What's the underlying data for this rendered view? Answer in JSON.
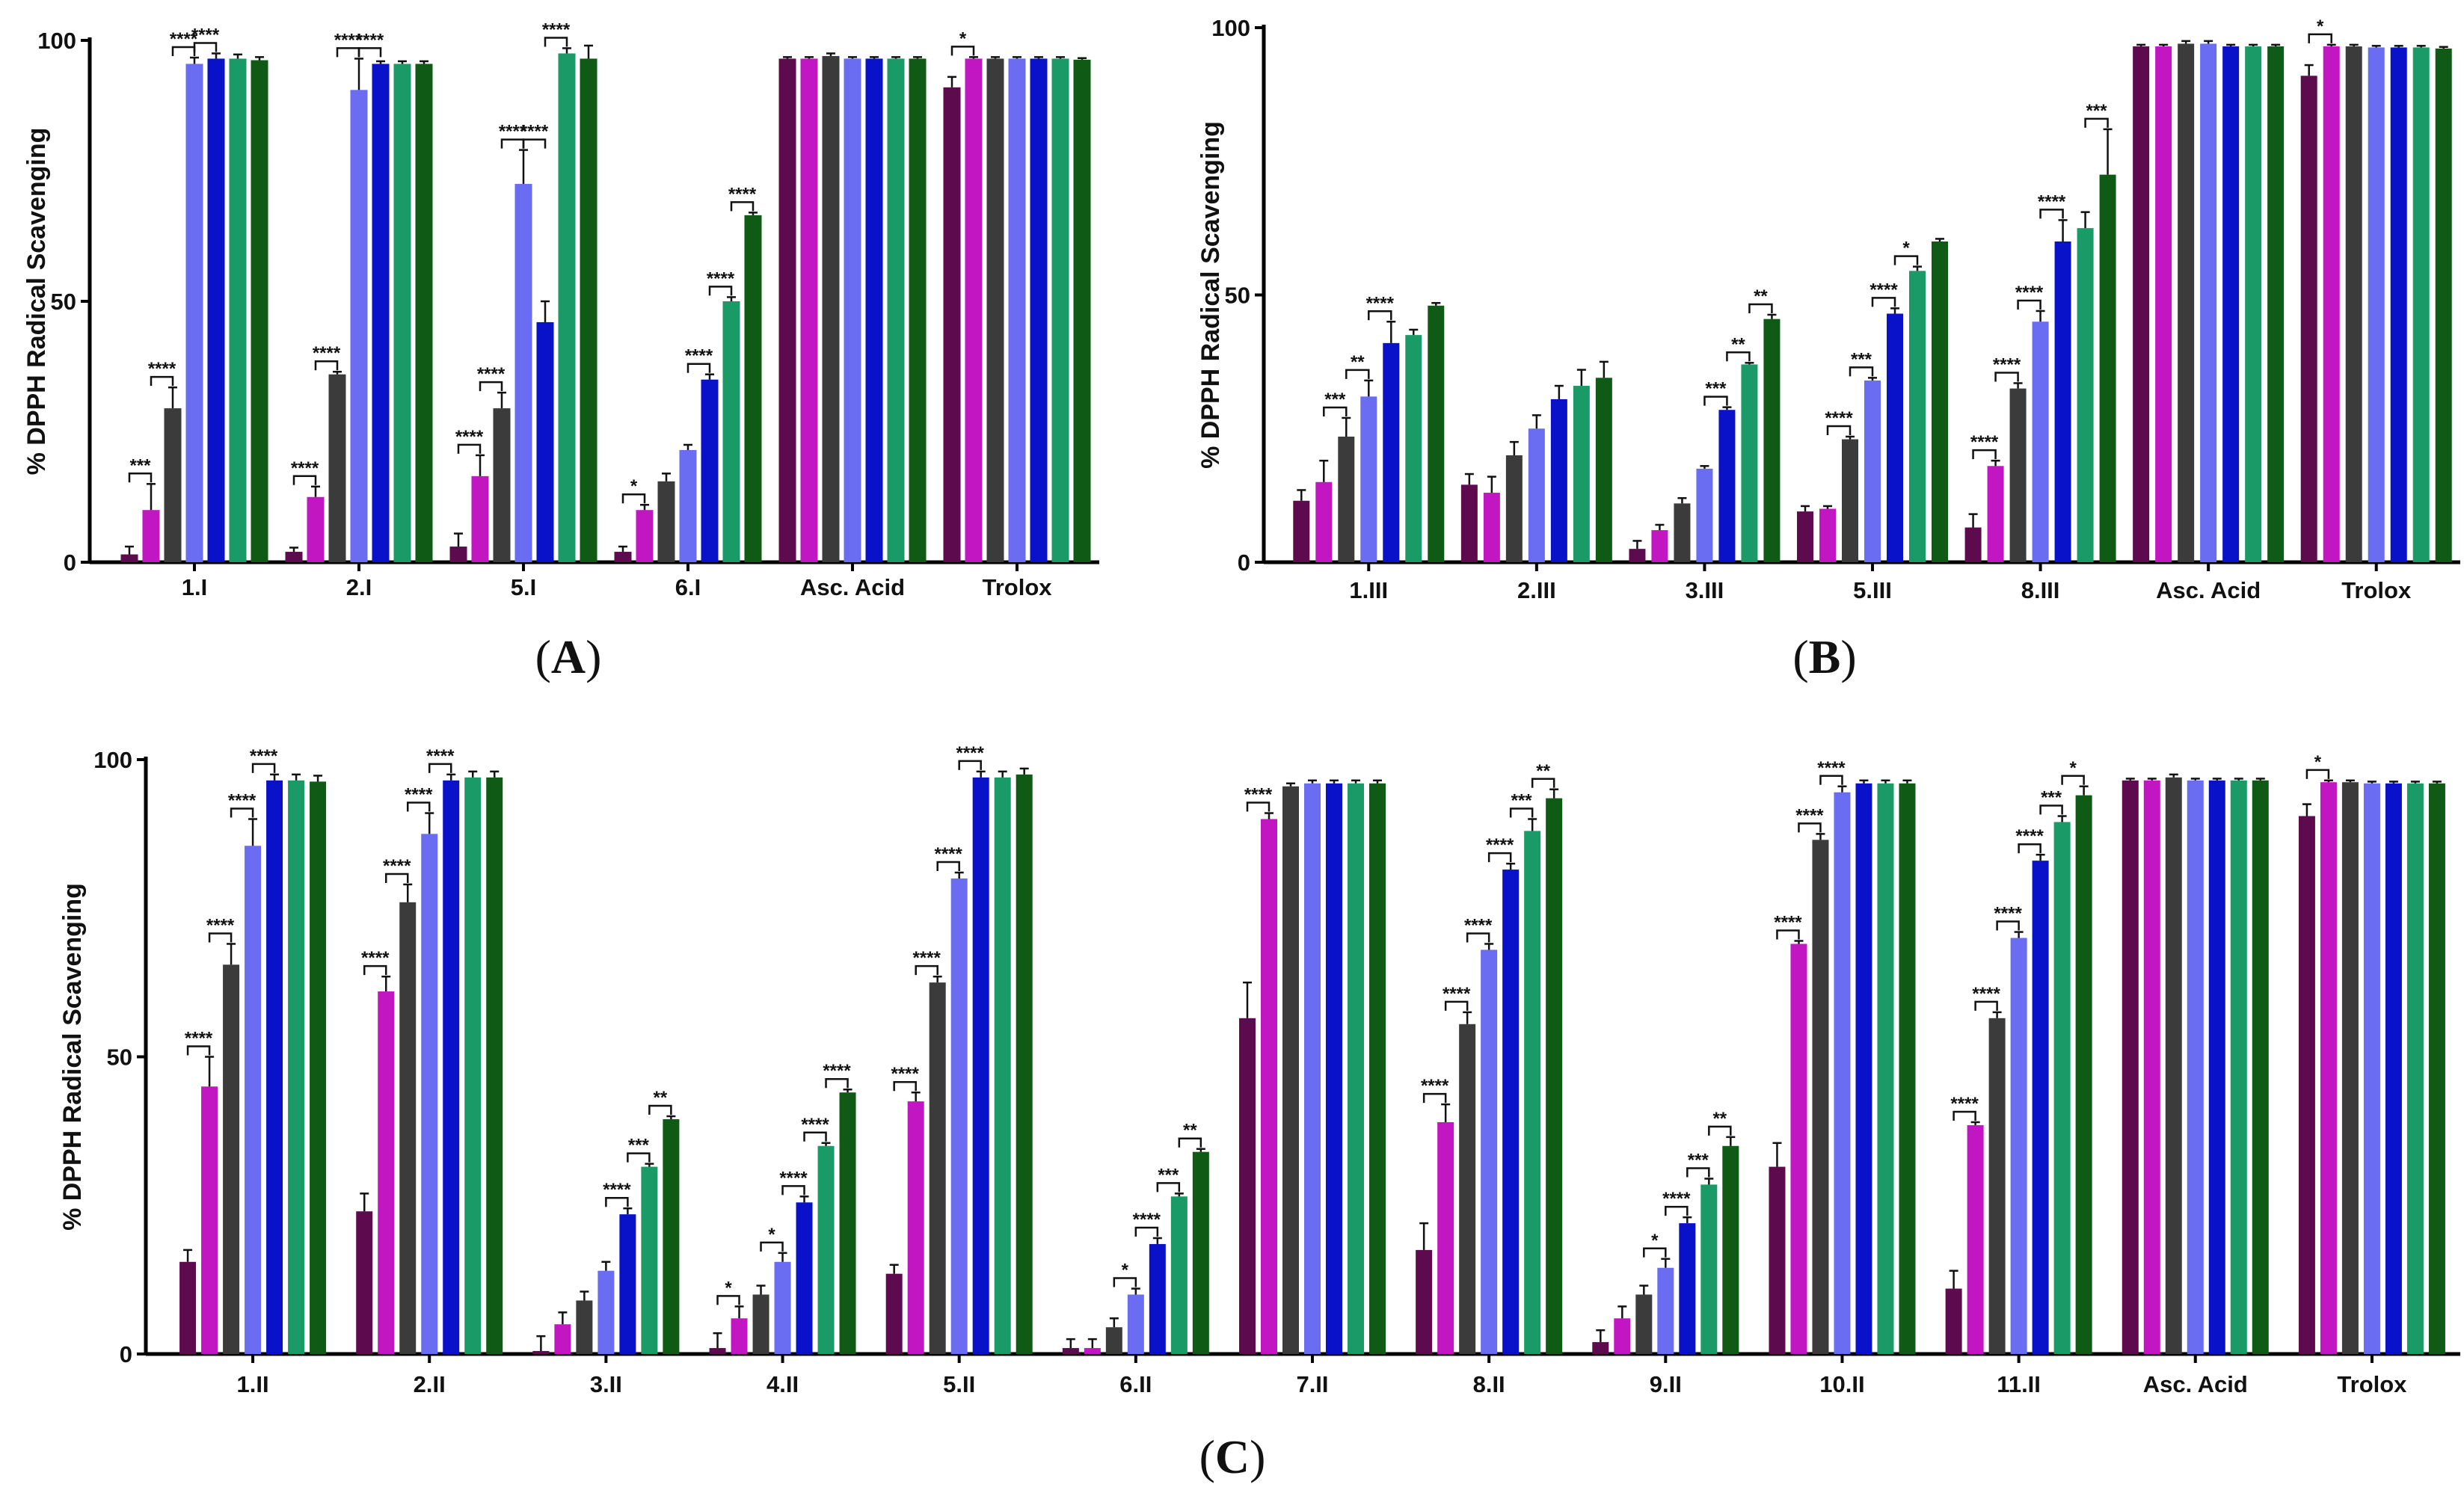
{
  "colors": [
    "#5e0a4f",
    "#c316c3",
    "#3b3b3b",
    "#6a6cf2",
    "#0a12c9",
    "#1a9a66",
    "#0f5a14"
  ],
  "chart_data": [
    {
      "panel": "A",
      "type": "bar",
      "ylabel": "% DPPH Radical Scavenging",
      "ylim": [
        0,
        100
      ],
      "yticks": [
        0,
        50,
        100
      ],
      "categories": [
        "1.I",
        "2.I",
        "5.I",
        "6.I",
        "Asc. Acid",
        "Trolox"
      ],
      "values": [
        [
          1.5,
          10,
          29.5,
          95.5,
          96.5,
          96.5,
          96.2
        ],
        [
          2,
          12.5,
          36,
          90.5,
          95.5,
          95.5,
          95.5
        ],
        [
          3,
          16.5,
          29.5,
          72.5,
          46,
          97.5,
          96.5
        ],
        [
          2,
          10,
          15.5,
          21.5,
          35,
          50,
          66.5
        ],
        [
          96.5,
          96.5,
          97,
          96.5,
          96.5,
          96.5,
          96.5
        ],
        [
          91,
          96.5,
          96.5,
          96.5,
          96.5,
          96.5,
          96.3
        ]
      ],
      "errors": [
        [
          1.5,
          5,
          4,
          1.2,
          1,
          0.8,
          0.6
        ],
        [
          0.8,
          2,
          0.5,
          6,
          0.5,
          0.5,
          0.5
        ],
        [
          2.5,
          4,
          3,
          6.5,
          4,
          1,
          2.5
        ],
        [
          1,
          1,
          1.5,
          1,
          1,
          0.8,
          0.5
        ],
        [
          0.3,
          0.3,
          0.5,
          0.3,
          0.3,
          0.3,
          0.3
        ],
        [
          2,
          0.3,
          0.3,
          0.3,
          0.3,
          0.3,
          0.3
        ]
      ],
      "significance": [
        [
          {
            "from": 0,
            "to": 1,
            "label": "***"
          },
          {
            "from": 1,
            "to": 2,
            "label": "****"
          },
          {
            "from": 2,
            "to": 3,
            "label": "****"
          },
          {
            "from": 3,
            "to": 4,
            "label": "****"
          }
        ],
        [
          {
            "from": 0,
            "to": 1,
            "label": "****"
          },
          {
            "from": 1,
            "to": 2,
            "label": "****"
          },
          {
            "from": 2,
            "to": 3,
            "label": "****"
          },
          {
            "from": 3,
            "to": 4,
            "label": "****"
          }
        ],
        [
          {
            "from": 0,
            "to": 1,
            "label": "****"
          },
          {
            "from": 1,
            "to": 2,
            "label": "****"
          },
          {
            "from": 2,
            "to": 3,
            "label": "****"
          },
          {
            "from": 3,
            "to": 4,
            "label": "****"
          },
          {
            "from": 4,
            "to": 5,
            "label": "****"
          }
        ],
        [
          {
            "from": 0,
            "to": 1,
            "label": "*"
          },
          {
            "from": 3,
            "to": 4,
            "label": "****"
          },
          {
            "from": 4,
            "to": 5,
            "label": "****"
          },
          {
            "from": 5,
            "to": 6,
            "label": "****"
          }
        ],
        [],
        [
          {
            "from": 0,
            "to": 1,
            "label": "*"
          }
        ]
      ]
    },
    {
      "panel": "B",
      "type": "bar",
      "ylabel": "% DPPH Radical Scavenging",
      "ylim": [
        0,
        100
      ],
      "yticks": [
        0,
        50,
        100
      ],
      "categories": [
        "1.III",
        "2.III",
        "3.III",
        "5.III",
        "8.III",
        "Asc. Acid",
        "Trolox"
      ],
      "values": [
        [
          11.5,
          15,
          23.5,
          31,
          41,
          42.5,
          48
        ],
        [
          14.5,
          13,
          20,
          25,
          30.5,
          33,
          34.5
        ],
        [
          2.5,
          6,
          11,
          17.5,
          28.5,
          37,
          45.5
        ],
        [
          9.5,
          10,
          23,
          34,
          46.5,
          54.5,
          60
        ],
        [
          6.5,
          18,
          32.5,
          45,
          60,
          62.5,
          72.5
        ],
        [
          96.5,
          96.5,
          97,
          97,
          96.5,
          96.5,
          96.5
        ],
        [
          91,
          96.5,
          96.5,
          96.3,
          96.3,
          96.3,
          96.1
        ]
      ],
      "errors": [
        [
          2,
          4,
          3.5,
          3,
          4,
          1,
          0.5
        ],
        [
          2,
          3,
          2.5,
          2.5,
          2.5,
          3,
          3
        ],
        [
          1.5,
          1,
          1,
          0.5,
          0.5,
          0.3,
          0.8
        ],
        [
          1,
          0.5,
          0.5,
          0.5,
          1,
          0.8,
          0.5
        ],
        [
          2.5,
          1,
          1,
          2,
          4,
          3,
          8.5
        ],
        [
          0.3,
          0.3,
          0.5,
          0.5,
          0.3,
          0.3,
          0.3
        ],
        [
          2,
          0.3,
          0.3,
          0.3,
          0.3,
          0.3,
          0.3
        ]
      ],
      "significance": [
        [
          {
            "from": 1,
            "to": 2,
            "label": "***"
          },
          {
            "from": 2,
            "to": 3,
            "label": "**"
          },
          {
            "from": 3,
            "to": 4,
            "label": "****"
          }
        ],
        [],
        [
          {
            "from": 3,
            "to": 4,
            "label": "***"
          },
          {
            "from": 4,
            "to": 5,
            "label": "**"
          },
          {
            "from": 5,
            "to": 6,
            "label": "**"
          }
        ],
        [
          {
            "from": 1,
            "to": 2,
            "label": "****"
          },
          {
            "from": 2,
            "to": 3,
            "label": "***"
          },
          {
            "from": 3,
            "to": 4,
            "label": "****"
          },
          {
            "from": 4,
            "to": 5,
            "label": "*"
          }
        ],
        [
          {
            "from": 0,
            "to": 1,
            "label": "****"
          },
          {
            "from": 1,
            "to": 2,
            "label": "****"
          },
          {
            "from": 2,
            "to": 3,
            "label": "****"
          },
          {
            "from": 3,
            "to": 4,
            "label": "****"
          },
          {
            "from": 5,
            "to": 6,
            "label": "***"
          }
        ],
        [],
        [
          {
            "from": 0,
            "to": 1,
            "label": "*"
          }
        ]
      ]
    },
    {
      "panel": "C",
      "type": "bar",
      "ylabel": "% DPPH Radical Scavenging",
      "ylim": [
        0,
        100
      ],
      "yticks": [
        0,
        50,
        100
      ],
      "categories": [
        "1.II",
        "2.II",
        "3.II",
        "4.II",
        "5.II",
        "6.II",
        "7.II",
        "8.II",
        "9.II",
        "10.II",
        "11.II",
        "Asc. Acid",
        "Trolox"
      ],
      "values": [
        [
          15.5,
          45,
          65.5,
          85.5,
          96.5,
          96.5,
          96.3
        ],
        [
          24,
          61,
          76,
          87.5,
          96.5,
          97,
          97
        ],
        [
          0.5,
          5,
          9,
          14,
          23.5,
          31.5,
          39.5
        ],
        [
          1,
          6,
          10,
          15.5,
          25.5,
          35,
          44
        ],
        [
          13.5,
          42.5,
          62.5,
          80,
          97,
          97,
          97.5
        ],
        [
          1,
          1,
          4.5,
          10,
          18.5,
          26.5,
          34
        ],
        [
          56.5,
          90,
          95.5,
          96,
          96,
          96,
          96
        ],
        [
          17.5,
          39,
          55.5,
          68,
          81.5,
          88,
          93.5
        ],
        [
          2,
          6,
          10,
          14.5,
          22,
          28.5,
          35
        ],
        [
          31.5,
          69,
          86.5,
          94.5,
          96,
          96,
          96
        ],
        [
          11,
          38.5,
          56.5,
          70,
          83,
          89.5,
          94
        ],
        [
          96.5,
          96.5,
          97,
          96.5,
          96.5,
          96.5,
          96.5
        ],
        [
          90.5,
          96.2,
          96.2,
          96,
          96,
          96,
          96
        ]
      ],
      "errors": [
        [
          2,
          5,
          3.5,
          4.5,
          1,
          1,
          1
        ],
        [
          3,
          2.5,
          3,
          3.5,
          1,
          1,
          1
        ],
        [
          2.5,
          2,
          1.5,
          1.5,
          1,
          0.5,
          0.5
        ],
        [
          2.5,
          2,
          1.5,
          1.5,
          1,
          0.5,
          0.5
        ],
        [
          1.5,
          1.5,
          1,
          1,
          1,
          1,
          1
        ],
        [
          1.5,
          1.5,
          1.5,
          1,
          1,
          0.5,
          0.5
        ],
        [
          6,
          1,
          0.5,
          0.5,
          0.5,
          0.5,
          0.5
        ],
        [
          4.5,
          3,
          2,
          1,
          1,
          2,
          1.5
        ],
        [
          2,
          2,
          1.5,
          1.5,
          1,
          1,
          1.5
        ],
        [
          4,
          0.5,
          1,
          1,
          0.5,
          0.5,
          0.5
        ],
        [
          3,
          0.5,
          1,
          1,
          1,
          1,
          1.5
        ],
        [
          0.3,
          0.3,
          0.5,
          0.3,
          0.3,
          0.3,
          0.3
        ],
        [
          2,
          0.3,
          0.3,
          0.3,
          0.3,
          0.3,
          0.3
        ]
      ],
      "significance": [
        [
          {
            "from": 0,
            "to": 1,
            "label": "****"
          },
          {
            "from": 1,
            "to": 2,
            "label": "****"
          },
          {
            "from": 2,
            "to": 3,
            "label": "****"
          },
          {
            "from": 3,
            "to": 4,
            "label": "****"
          }
        ],
        [
          {
            "from": 0,
            "to": 1,
            "label": "****"
          },
          {
            "from": 1,
            "to": 2,
            "label": "****"
          },
          {
            "from": 2,
            "to": 3,
            "label": "****"
          },
          {
            "from": 3,
            "to": 4,
            "label": "****"
          }
        ],
        [
          {
            "from": 3,
            "to": 4,
            "label": "****"
          },
          {
            "from": 4,
            "to": 5,
            "label": "***"
          },
          {
            "from": 5,
            "to": 6,
            "label": "**"
          }
        ],
        [
          {
            "from": 0,
            "to": 1,
            "label": "*"
          },
          {
            "from": 2,
            "to": 3,
            "label": "*"
          },
          {
            "from": 3,
            "to": 4,
            "label": "****"
          },
          {
            "from": 4,
            "to": 5,
            "label": "****"
          },
          {
            "from": 5,
            "to": 6,
            "label": "****"
          }
        ],
        [
          {
            "from": 0,
            "to": 1,
            "label": "****"
          },
          {
            "from": 1,
            "to": 2,
            "label": "****"
          },
          {
            "from": 2,
            "to": 3,
            "label": "****"
          },
          {
            "from": 3,
            "to": 4,
            "label": "****"
          }
        ],
        [
          {
            "from": 2,
            "to": 3,
            "label": "*"
          },
          {
            "from": 3,
            "to": 4,
            "label": "****"
          },
          {
            "from": 4,
            "to": 5,
            "label": "***"
          },
          {
            "from": 5,
            "to": 6,
            "label": "**"
          }
        ],
        [
          {
            "from": 0,
            "to": 1,
            "label": "****"
          }
        ],
        [
          {
            "from": 0,
            "to": 1,
            "label": "****"
          },
          {
            "from": 1,
            "to": 2,
            "label": "****"
          },
          {
            "from": 2,
            "to": 3,
            "label": "****"
          },
          {
            "from": 3,
            "to": 4,
            "label": "****"
          },
          {
            "from": 4,
            "to": 5,
            "label": "***"
          },
          {
            "from": 5,
            "to": 6,
            "label": "**"
          }
        ],
        [
          {
            "from": 2,
            "to": 3,
            "label": "*"
          },
          {
            "from": 3,
            "to": 4,
            "label": "****"
          },
          {
            "from": 4,
            "to": 5,
            "label": "***"
          },
          {
            "from": 5,
            "to": 6,
            "label": "**"
          }
        ],
        [
          {
            "from": 0,
            "to": 1,
            "label": "****"
          },
          {
            "from": 1,
            "to": 2,
            "label": "****"
          },
          {
            "from": 2,
            "to": 3,
            "label": "****"
          }
        ],
        [
          {
            "from": 0,
            "to": 1,
            "label": "****"
          },
          {
            "from": 1,
            "to": 2,
            "label": "****"
          },
          {
            "from": 2,
            "to": 3,
            "label": "****"
          },
          {
            "from": 3,
            "to": 4,
            "label": "****"
          },
          {
            "from": 4,
            "to": 5,
            "label": "***"
          },
          {
            "from": 5,
            "to": 6,
            "label": "*"
          }
        ],
        [],
        [
          {
            "from": 0,
            "to": 1,
            "label": "*"
          }
        ]
      ]
    }
  ]
}
